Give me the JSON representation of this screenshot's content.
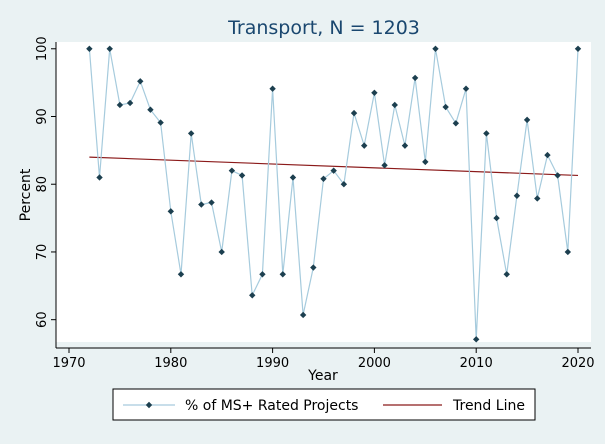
{
  "chart_data": {
    "type": "line",
    "title": "Transport, N = 1203",
    "xlabel": "Year",
    "ylabel": "Percent",
    "xlim": [
      1970,
      2020
    ],
    "ylim": [
      57,
      101
    ],
    "x_ticks": [
      1970,
      1980,
      1990,
      2000,
      2010,
      2020
    ],
    "y_ticks": [
      60,
      70,
      80,
      90,
      100
    ],
    "grid": false,
    "legend_position": "bottom",
    "series": [
      {
        "name": "% of MS+ Rated Projects",
        "color": "#a6cbdd",
        "marker_color": "#1c3f4f",
        "x": [
          1972,
          1973,
          1974,
          1975,
          1976,
          1977,
          1978,
          1979,
          1980,
          1981,
          1982,
          1983,
          1984,
          1985,
          1986,
          1987,
          1988,
          1989,
          1990,
          1991,
          1992,
          1993,
          1994,
          1995,
          1996,
          1997,
          1998,
          1999,
          2000,
          2001,
          2002,
          2003,
          2004,
          2005,
          2006,
          2007,
          2008,
          2009,
          2010,
          2011,
          2012,
          2013,
          2014,
          2015,
          2016,
          2017,
          2018,
          2019,
          2020
        ],
        "values": [
          100,
          81,
          100,
          91.7,
          92,
          95.2,
          91,
          89.1,
          76,
          66.7,
          87.5,
          77,
          77.3,
          70,
          82,
          81.3,
          63.6,
          66.7,
          94.1,
          66.7,
          81,
          60.7,
          67.7,
          80.8,
          82,
          80,
          90.5,
          85.7,
          93.5,
          82.8,
          91.7,
          85.7,
          95.7,
          83.3,
          100,
          91.4,
          89,
          94.1,
          57.1,
          87.5,
          75,
          66.7,
          78.3,
          89.5,
          77.9,
          84.3,
          81.3,
          70,
          100
        ]
      },
      {
        "name": "Trend Line",
        "color": "#8b1a1a",
        "x": [
          1972,
          2020
        ],
        "values": [
          84,
          81.3
        ]
      }
    ]
  }
}
